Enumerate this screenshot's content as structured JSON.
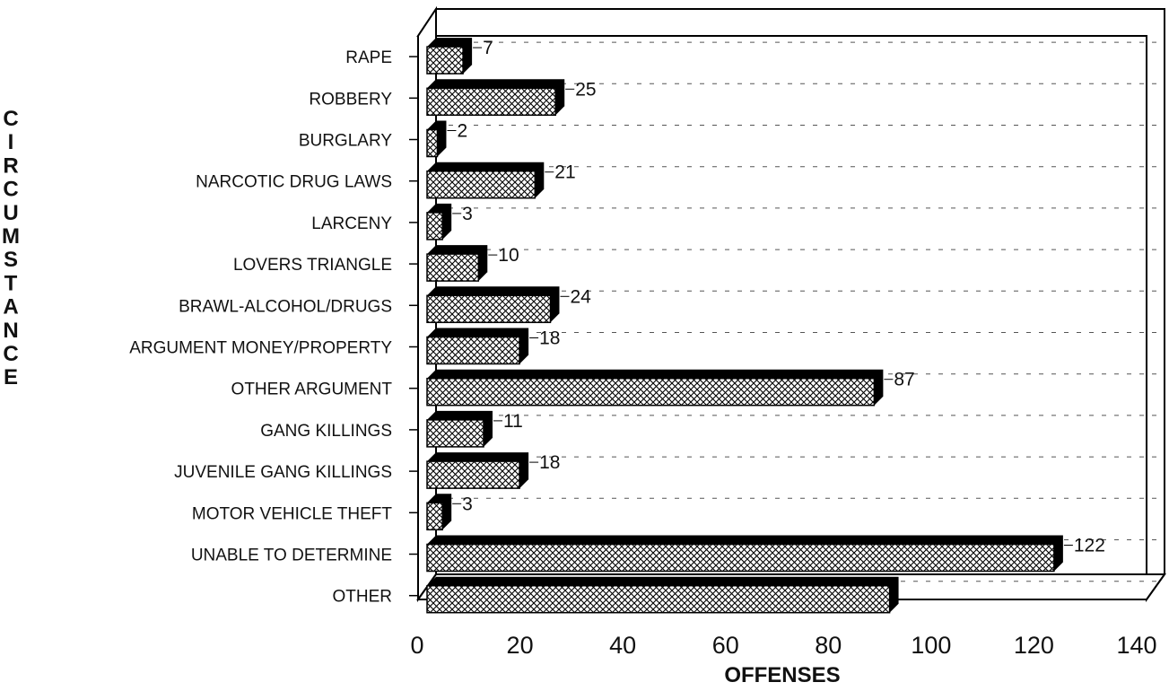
{
  "chart_data": {
    "type": "bar",
    "orientation": "horizontal",
    "categories": [
      "RAPE",
      "ROBBERY",
      "BURGLARY",
      "NARCOTIC DRUG LAWS",
      "LARCENY",
      "LOVERS TRIANGLE",
      "BRAWL-ALCOHOL/DRUGS",
      "ARGUMENT MONEY/PROPERTY",
      "OTHER ARGUMENT",
      "GANG KILLINGS",
      "JUVENILE GANG KILLINGS",
      "MOTOR VEHICLE THEFT",
      "UNABLE TO DETERMINE",
      "OTHER"
    ],
    "values": [
      7,
      25,
      2,
      21,
      3,
      10,
      24,
      18,
      87,
      11,
      18,
      3,
      122,
      90
    ],
    "data_labels": [
      "7",
      "25",
      "2",
      "21",
      "3",
      "10",
      "24",
      "18",
      "87",
      "11",
      "18",
      "3",
      "122",
      ""
    ],
    "title": "",
    "xlabel": "OFFENSES",
    "ylabel": "CIRCUMSTANCE",
    "xlim": [
      0,
      140
    ],
    "xticks": [
      "0",
      "20",
      "40",
      "60",
      "80",
      "100",
      "120",
      "140"
    ],
    "grid": "dashed horizontal",
    "legend": "none",
    "style": "3d-hatched",
    "colors": {
      "hatch": "#ffffff",
      "shadow": "#000000",
      "grid": "#555555"
    }
  }
}
